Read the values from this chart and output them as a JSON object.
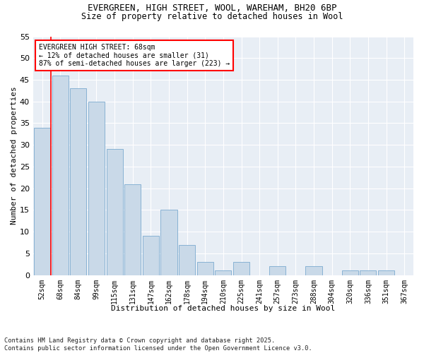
{
  "title1": "EVERGREEN, HIGH STREET, WOOL, WAREHAM, BH20 6BP",
  "title2": "Size of property relative to detached houses in Wool",
  "xlabel": "Distribution of detached houses by size in Wool",
  "ylabel": "Number of detached properties",
  "categories": [
    "52sqm",
    "68sqm",
    "84sqm",
    "99sqm",
    "115sqm",
    "131sqm",
    "147sqm",
    "162sqm",
    "178sqm",
    "194sqm",
    "210sqm",
    "225sqm",
    "241sqm",
    "257sqm",
    "273sqm",
    "288sqm",
    "304sqm",
    "320sqm",
    "336sqm",
    "351sqm",
    "367sqm"
  ],
  "values": [
    34,
    46,
    43,
    40,
    29,
    21,
    9,
    15,
    7,
    3,
    1,
    3,
    0,
    2,
    0,
    2,
    0,
    1,
    1,
    1,
    0
  ],
  "bar_color": "#c9d9e8",
  "bar_edge_color": "#7baacf",
  "red_line_index": 1,
  "annotation_title": "EVERGREEN HIGH STREET: 68sqm",
  "annotation_line1": "← 12% of detached houses are smaller (31)",
  "annotation_line2": "87% of semi-detached houses are larger (223) →",
  "ylim": [
    0,
    55
  ],
  "yticks": [
    0,
    5,
    10,
    15,
    20,
    25,
    30,
    35,
    40,
    45,
    50,
    55
  ],
  "background_color": "#e8eef5",
  "footnote1": "Contains HM Land Registry data © Crown copyright and database right 2025.",
  "footnote2": "Contains public sector information licensed under the Open Government Licence v3.0."
}
